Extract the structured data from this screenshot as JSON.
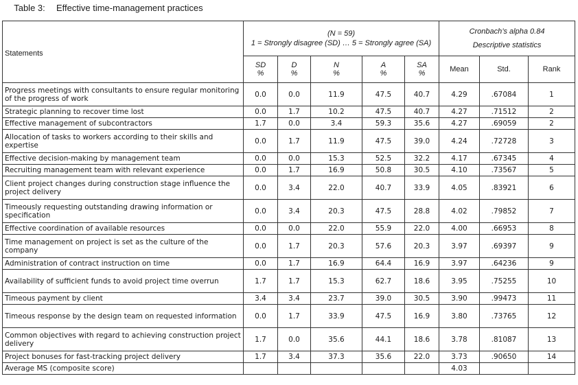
{
  "caption": {
    "number": "Table 3:",
    "title": "Effective time-management practices"
  },
  "header": {
    "statements": "Statements",
    "n_line": "(N = 59)",
    "scale_line": "1 = Strongly disagree (SD) … 5 = Strongly agree (SA)",
    "alpha_line": "Cronbach’s alpha 0.84",
    "desc_line": "Descriptive statistics",
    "cols": [
      {
        "code": "SD",
        "unit": "%"
      },
      {
        "code": "D",
        "unit": "%"
      },
      {
        "code": "N",
        "unit": "%"
      },
      {
        "code": "A",
        "unit": "%"
      },
      {
        "code": "SA",
        "unit": "%"
      }
    ],
    "mean": "Mean",
    "std": "Std.",
    "rank": "Rank"
  },
  "rows": [
    {
      "statement": "Progress meetings with consultants to ensure regular monitoring of the progress of work",
      "sd": "0.0",
      "d": "0.0",
      "n": "11.9",
      "a": "47.5",
      "sa": "40.7",
      "mean": "4.29",
      "std": ".67084",
      "rank": "1"
    },
    {
      "statement": "Strategic planning to recover time lost",
      "sd": "0.0",
      "d": "1.7",
      "n": "10.2",
      "a": "47.5",
      "sa": "40.7",
      "mean": "4.27",
      "std": ".71512",
      "rank": "2"
    },
    {
      "statement": "Effective management of subcontractors",
      "sd": "1.7",
      "d": "0.0",
      "n": "3.4",
      "a": "59.3",
      "sa": "35.6",
      "mean": "4.27",
      "std": ".69059",
      "rank": "2"
    },
    {
      "statement": "Allocation of tasks to workers according to their skills and expertise",
      "sd": "0.0",
      "d": "1.7",
      "n": "11.9",
      "a": "47.5",
      "sa": "39.0",
      "mean": "4.24",
      "std": ".72728",
      "rank": "3"
    },
    {
      "statement": "Effective decision-making by management team",
      "sd": "0.0",
      "d": "0.0",
      "n": "15.3",
      "a": "52.5",
      "sa": "32.2",
      "mean": "4.17",
      "std": ".67345",
      "rank": "4"
    },
    {
      "statement": "Recruiting management team with relevant experience",
      "sd": "0.0",
      "d": "1.7",
      "n": "16.9",
      "a": "50.8",
      "sa": "30.5",
      "mean": "4.10",
      "std": ".73567",
      "rank": "5"
    },
    {
      "statement": "Client project changes during construction stage influence the project delivery",
      "sd": "0.0",
      "d": "3.4",
      "n": "22.0",
      "a": "40.7",
      "sa": "33.9",
      "mean": "4.05",
      "std": ".83921",
      "rank": "6"
    },
    {
      "statement": "Timeously requesting outstanding drawing information or specification",
      "sd": "0.0",
      "d": "3.4",
      "n": "20.3",
      "a": "47.5",
      "sa": "28.8",
      "mean": "4.02",
      "std": ".79852",
      "rank": "7"
    },
    {
      "statement": "Effective coordination of available resources",
      "sd": "0.0",
      "d": "0.0",
      "n": "22.0",
      "a": "55.9",
      "sa": "22.0",
      "mean": "4.00",
      "std": ".66953",
      "rank": "8"
    },
    {
      "statement": "Time management on project is set as the culture of the company",
      "sd": "0.0",
      "d": "1.7",
      "n": "20.3",
      "a": "57.6",
      "sa": "20.3",
      "mean": "3.97",
      "std": ".69397",
      "rank": "9"
    },
    {
      "statement": "Administration of contract instruction on time",
      "sd": "0.0",
      "d": "1.7",
      "n": "16.9",
      "a": "64.4",
      "sa": "16.9",
      "mean": "3.97",
      "std": ".64236",
      "rank": "9"
    },
    {
      "statement": "Availability of sufficient funds to avoid project time overrun",
      "sd": "1.7",
      "d": "1.7",
      "n": "15.3",
      "a": "62.7",
      "sa": "18.6",
      "mean": "3.95",
      "std": ".75255",
      "rank": "10"
    },
    {
      "statement": "Timeous payment by client",
      "sd": "3.4",
      "d": "3.4",
      "n": "23.7",
      "a": "39.0",
      "sa": "30.5",
      "mean": "3.90",
      "std": ".99473",
      "rank": "11"
    },
    {
      "statement": "Timeous response by the design team on requested information",
      "sd": "0.0",
      "d": "1.7",
      "n": "33.9",
      "a": "47.5",
      "sa": "16.9",
      "mean": "3.80",
      "std": ".73765",
      "rank": "12"
    },
    {
      "statement": "Common objectives with regard to achieving construction project delivery",
      "sd": "1.7",
      "d": "0.0",
      "n": "35.6",
      "a": "44.1",
      "sa": "18.6",
      "mean": "3.78",
      "std": ".81087",
      "rank": "13"
    },
    {
      "statement": "Project bonuses for fast-tracking project delivery",
      "sd": "1.7",
      "d": "3.4",
      "n": "37.3",
      "a": "35.6",
      "sa": "22.0",
      "mean": "3.73",
      "std": ".90650",
      "rank": "14"
    }
  ],
  "footer": {
    "label": "Average MS (composite score)",
    "mean": "4.03"
  }
}
